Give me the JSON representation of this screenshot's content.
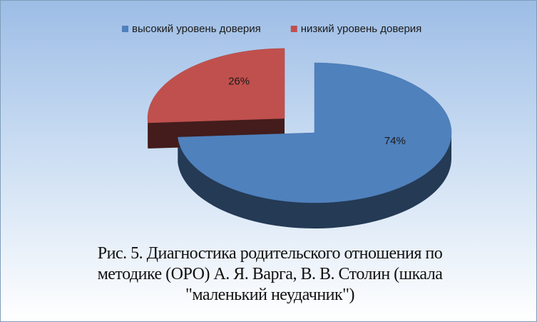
{
  "chart_data": {
    "type": "pie",
    "categories": [
      "высокий уровень доверия",
      "низкий уровень доверия"
    ],
    "values": [
      74,
      26
    ],
    "value_labels": [
      "74%",
      "26%"
    ],
    "colors": [
      "#4f81bd",
      "#c0504d"
    ],
    "caption": "Рис. 5. Диагностика родительского отношения по методике (ОРО) А. Я. Варга, В. В. Столин (шкала \"маленький неудачник\")"
  }
}
